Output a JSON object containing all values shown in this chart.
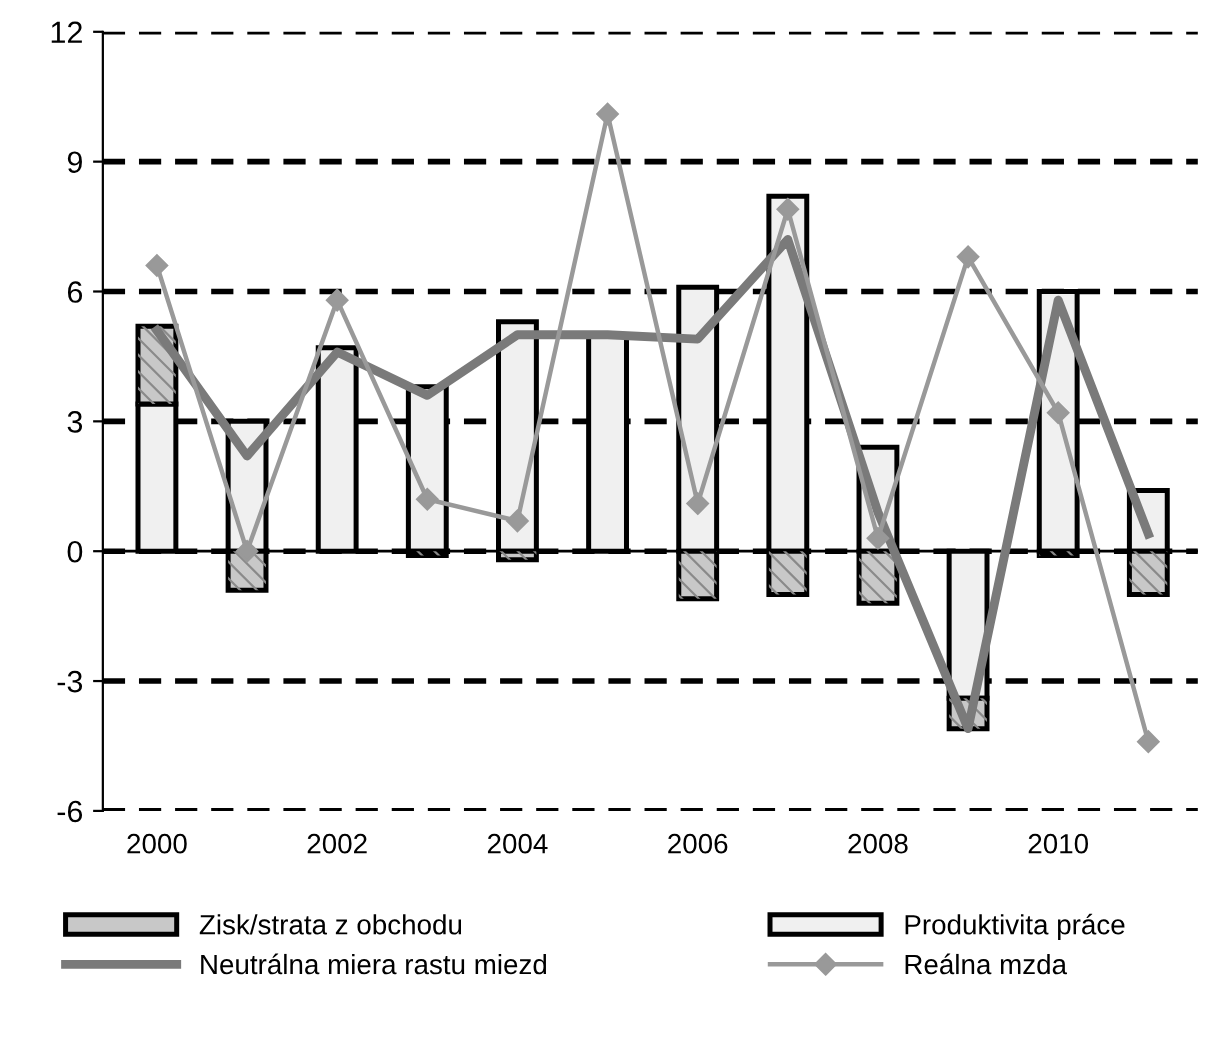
{
  "chart_data": {
    "type": "bar",
    "stacked": true,
    "categories": [
      "2000",
      null,
      "2002",
      null,
      "2004",
      null,
      "2006",
      null,
      "2008",
      null,
      "2010",
      null
    ],
    "series": [
      {
        "name": "Produktivita práce",
        "color": "#f0f0f0",
        "values": [
          3.4,
          3.0,
          4.7,
          3.8,
          5.3,
          5.0,
          6.1,
          8.2,
          2.4,
          -3.4,
          6.0,
          1.4
        ]
      },
      {
        "name": "Zisk/strata z obchodu",
        "color": "#c8c8c8",
        "values": [
          1.8,
          -0.9,
          0,
          -0.1,
          -0.2,
          0,
          -1.1,
          -1.0,
          -1.2,
          -0.7,
          -0.1,
          -1.0
        ]
      },
      {
        "name": "Neutrálna miera rastu miezd",
        "type": "line",
        "color": "#7a7a7a",
        "marker": "none",
        "values": [
          5.1,
          2.2,
          4.6,
          3.6,
          5.0,
          5.0,
          4.9,
          7.2,
          0.9,
          -4.1,
          5.8,
          0.4
        ]
      },
      {
        "name": "Reálna mzda",
        "type": "line",
        "color": "#999999",
        "marker": "diamond",
        "values": [
          6.6,
          0,
          5.8,
          1.2,
          0.7,
          10.1,
          1.1,
          7.9,
          0.3,
          6.8,
          3.2,
          -4.4
        ]
      }
    ],
    "ylim": [
      -6,
      12
    ],
    "yticks": [
      -6,
      -3,
      0,
      3,
      6,
      9,
      12
    ],
    "grid": "y",
    "legend": "bottom"
  }
}
